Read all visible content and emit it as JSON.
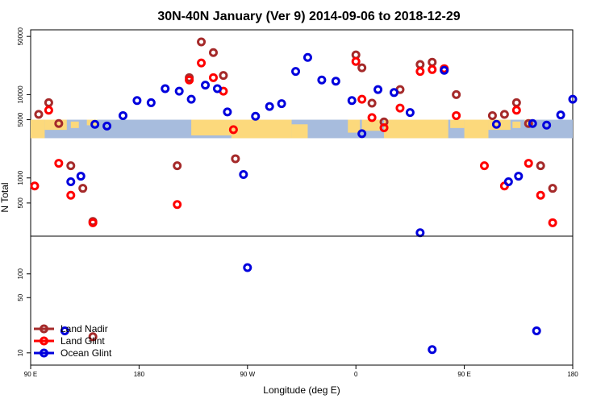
{
  "chart_data": {
    "type": "scatter",
    "title": "30N-40N January (Ver 9)   2014-09-06 to 2018-12-29",
    "xlabel": "Longitude (deg E)",
    "ylabel": "N Total",
    "xlim": [
      -90,
      180
    ],
    "x_tick_values": [
      -90,
      -36,
      18,
      72,
      126,
      180
    ],
    "x_tick_labels": [
      "90 E",
      "180",
      "90 W",
      "0",
      "90 E",
      "180"
    ],
    "y_scale": "log",
    "top_panel": {
      "ylim": [
        200,
        60000
      ],
      "y_ticks": [
        500,
        1000,
        5000,
        10000,
        50000
      ],
      "y_tick_labels": [
        "500",
        "1000",
        "5000",
        "10000",
        "50000"
      ],
      "map_band": {
        "ymin": 3000,
        "ymax": 5000,
        "ocean_color": "#a7bcdd",
        "land_color": "#fcd97c"
      }
    },
    "bottom_panel": {
      "ylim": [
        7,
        300
      ],
      "y_ticks": [
        10,
        50,
        100
      ],
      "y_tick_labels": [
        "10",
        "50",
        "100"
      ]
    },
    "legend": {
      "position": "bottom-left",
      "entries": [
        "Land Nadir",
        "Land Glint",
        "Ocean Glint"
      ]
    },
    "series": [
      {
        "name": "Land Nadir",
        "color": "#a52a2a",
        "top": [
          [
            -86,
            5800
          ],
          [
            -81,
            8000
          ],
          [
            -76,
            4500
          ],
          [
            -70,
            1400
          ],
          [
            -64,
            750
          ],
          [
            -59,
            300
          ],
          [
            -17,
            1400
          ],
          [
            -11,
            16000
          ],
          [
            -5,
            43000
          ],
          [
            1,
            32000
          ],
          [
            6,
            17000
          ],
          [
            12,
            1700
          ],
          [
            72,
            30000
          ],
          [
            75,
            21000
          ],
          [
            80,
            7900
          ],
          [
            86,
            4700
          ],
          [
            94,
            11500
          ],
          [
            104,
            23000
          ],
          [
            110,
            24500
          ],
          [
            116,
            19800
          ],
          [
            122,
            10000
          ],
          [
            140,
            5600
          ],
          [
            146,
            5800
          ],
          [
            152,
            8000
          ],
          [
            158,
            4500
          ],
          [
            164,
            1400
          ],
          [
            170,
            750
          ]
        ],
        "bottom": [
          [
            -59,
            16
          ]
        ]
      },
      {
        "name": "Land Glint",
        "color": "#ff0000",
        "top": [
          [
            -88,
            800
          ],
          [
            -81,
            6500
          ],
          [
            -76,
            1500
          ],
          [
            -70,
            620
          ],
          [
            -59,
            290
          ],
          [
            -17,
            480
          ],
          [
            -11,
            15000
          ],
          [
            -5,
            24000
          ],
          [
            1,
            16000
          ],
          [
            6,
            11000
          ],
          [
            11,
            3800
          ],
          [
            72,
            25000
          ],
          [
            75,
            8800
          ],
          [
            80,
            5300
          ],
          [
            86,
            4000
          ],
          [
            94,
            6900
          ],
          [
            104,
            19000
          ],
          [
            110,
            20000
          ],
          [
            116,
            20500
          ],
          [
            122,
            5600
          ],
          [
            136,
            1400
          ],
          [
            146,
            800
          ],
          [
            152,
            6500
          ],
          [
            158,
            1500
          ],
          [
            164,
            620
          ],
          [
            170,
            290
          ]
        ],
        "bottom": []
      },
      {
        "name": "Ocean Glint",
        "color": "#0000dd",
        "top": [
          [
            -70,
            900
          ],
          [
            -65,
            1050
          ],
          [
            -58,
            4400
          ],
          [
            -52,
            4200
          ],
          [
            -44,
            5600
          ],
          [
            -37,
            8500
          ],
          [
            -30,
            8000
          ],
          [
            -23,
            11800
          ],
          [
            -16,
            11000
          ],
          [
            -10,
            8800
          ],
          [
            -3,
            13000
          ],
          [
            3,
            11800
          ],
          [
            8,
            6200
          ],
          [
            16,
            1100
          ],
          [
            22,
            5500
          ],
          [
            29,
            7200
          ],
          [
            35,
            7800
          ],
          [
            42,
            19000
          ],
          [
            48,
            28000
          ],
          [
            55,
            15000
          ],
          [
            62,
            14500
          ],
          [
            70,
            8500
          ],
          [
            75,
            3400
          ],
          [
            83,
            11500
          ],
          [
            91,
            10600
          ],
          [
            99,
            6100
          ],
          [
            104,
            220
          ],
          [
            116,
            19600
          ],
          [
            142,
            4400
          ],
          [
            148,
            900
          ],
          [
            153,
            1050
          ],
          [
            160,
            4500
          ],
          [
            167,
            4300
          ],
          [
            174,
            5700
          ],
          [
            180,
            8800
          ]
        ],
        "bottom": [
          [
            -73,
            19
          ],
          [
            18,
            120
          ],
          [
            110,
            11
          ],
          [
            162,
            19
          ]
        ]
      }
    ]
  }
}
